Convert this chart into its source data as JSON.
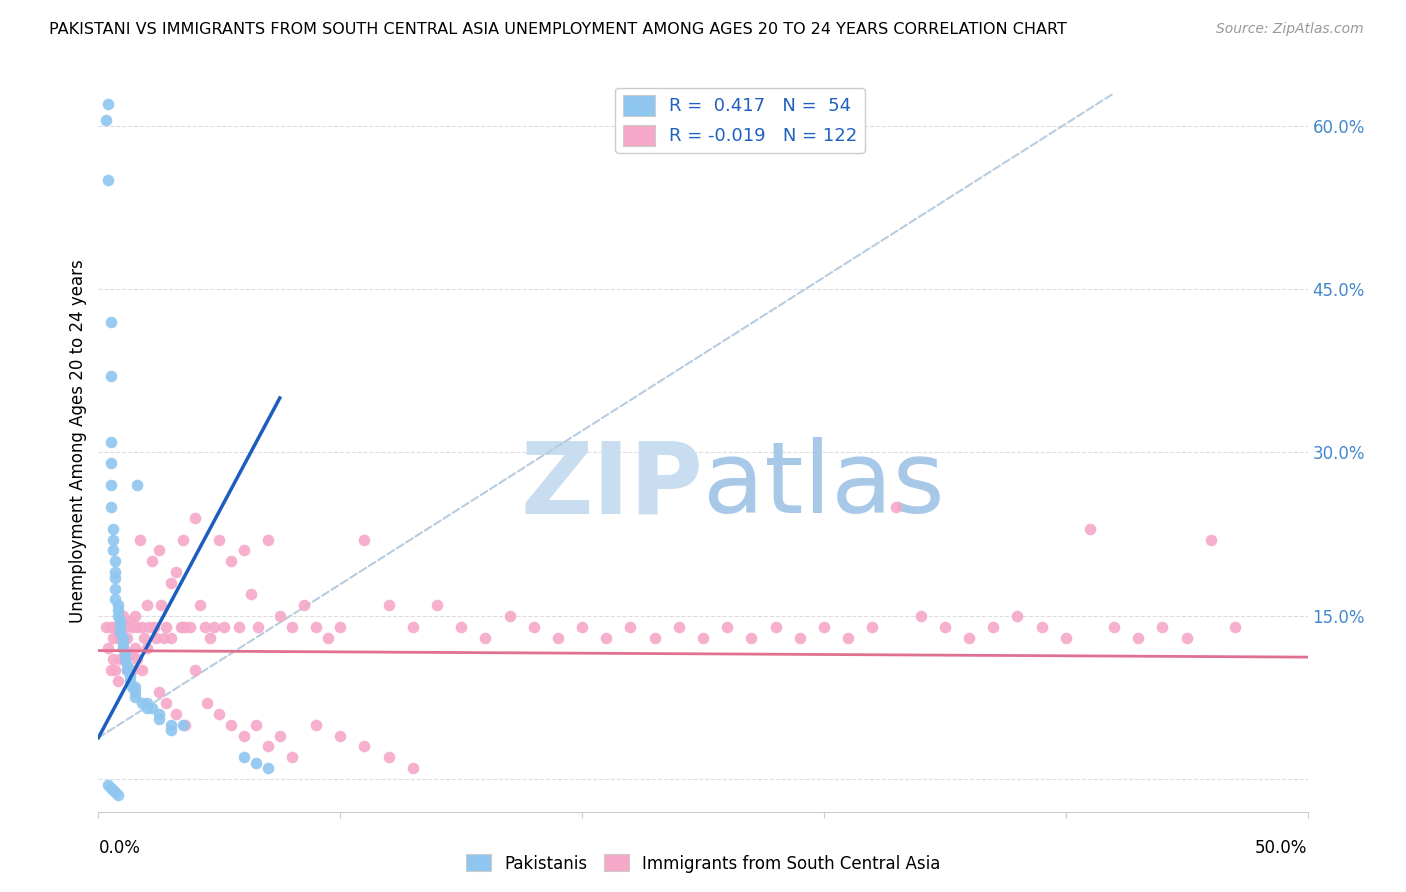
{
  "title": "PAKISTANI VS IMMIGRANTS FROM SOUTH CENTRAL ASIA UNEMPLOYMENT AMONG AGES 20 TO 24 YEARS CORRELATION CHART",
  "source": "Source: ZipAtlas.com",
  "ylabel": "Unemployment Among Ages 20 to 24 years",
  "xlim": [
    0.0,
    0.5
  ],
  "ylim": [
    -0.03,
    0.65
  ],
  "yticks": [
    0.0,
    0.15,
    0.3,
    0.45,
    0.6
  ],
  "ytick_labels": [
    "",
    "15.0%",
    "30.0%",
    "45.0%",
    "60.0%"
  ],
  "xticks": [
    0.0,
    0.1,
    0.2,
    0.3,
    0.4,
    0.5
  ],
  "R_pakistani": 0.417,
  "N_pakistani": 54,
  "R_immigrants": -0.019,
  "N_immigrants": 122,
  "color_pakistani": "#8EC6F0",
  "color_immigrants": "#F5A8C8",
  "color_line_pakistani": "#1B5EBF",
  "color_line_immigrants": "#E07090",
  "color_dashed_line": "#B8CCE0",
  "watermark_zip_color": "#C8DDF0",
  "watermark_atlas_color": "#A8C8E8",
  "pakistani_x": [
    0.003,
    0.004,
    0.004,
    0.005,
    0.005,
    0.005,
    0.005,
    0.005,
    0.005,
    0.006,
    0.006,
    0.006,
    0.007,
    0.007,
    0.007,
    0.007,
    0.007,
    0.008,
    0.008,
    0.008,
    0.009,
    0.009,
    0.009,
    0.01,
    0.01,
    0.01,
    0.011,
    0.011,
    0.012,
    0.012,
    0.013,
    0.013,
    0.014,
    0.015,
    0.015,
    0.015,
    0.016,
    0.018,
    0.02,
    0.02,
    0.022,
    0.025,
    0.025,
    0.03,
    0.03,
    0.035,
    0.06,
    0.065,
    0.07,
    0.004,
    0.005,
    0.006,
    0.007,
    0.008
  ],
  "pakistani_y": [
    0.605,
    0.62,
    0.55,
    0.42,
    0.37,
    0.31,
    0.29,
    0.27,
    0.25,
    0.23,
    0.22,
    0.21,
    0.2,
    0.19,
    0.185,
    0.175,
    0.165,
    0.16,
    0.155,
    0.15,
    0.145,
    0.14,
    0.135,
    0.13,
    0.125,
    0.12,
    0.115,
    0.11,
    0.105,
    0.1,
    0.095,
    0.09,
    0.085,
    0.085,
    0.08,
    0.075,
    0.27,
    0.07,
    0.07,
    0.065,
    0.065,
    0.06,
    0.055,
    0.05,
    0.045,
    0.05,
    0.02,
    0.015,
    0.01,
    -0.005,
    -0.008,
    -0.01,
    -0.012,
    -0.015
  ],
  "immigrants_x": [
    0.003,
    0.004,
    0.005,
    0.005,
    0.006,
    0.006,
    0.007,
    0.007,
    0.008,
    0.008,
    0.009,
    0.009,
    0.01,
    0.01,
    0.011,
    0.011,
    0.012,
    0.012,
    0.013,
    0.013,
    0.014,
    0.014,
    0.015,
    0.015,
    0.016,
    0.016,
    0.017,
    0.018,
    0.018,
    0.019,
    0.02,
    0.02,
    0.021,
    0.022,
    0.023,
    0.024,
    0.025,
    0.026,
    0.027,
    0.028,
    0.03,
    0.03,
    0.032,
    0.034,
    0.035,
    0.036,
    0.038,
    0.04,
    0.042,
    0.044,
    0.046,
    0.048,
    0.05,
    0.052,
    0.055,
    0.058,
    0.06,
    0.063,
    0.066,
    0.07,
    0.075,
    0.08,
    0.085,
    0.09,
    0.095,
    0.1,
    0.11,
    0.12,
    0.13,
    0.14,
    0.15,
    0.16,
    0.17,
    0.18,
    0.19,
    0.2,
    0.21,
    0.22,
    0.23,
    0.24,
    0.25,
    0.26,
    0.27,
    0.28,
    0.29,
    0.3,
    0.31,
    0.32,
    0.33,
    0.34,
    0.35,
    0.36,
    0.37,
    0.38,
    0.39,
    0.4,
    0.41,
    0.42,
    0.43,
    0.44,
    0.45,
    0.46,
    0.47,
    0.035,
    0.04,
    0.045,
    0.05,
    0.055,
    0.06,
    0.065,
    0.07,
    0.075,
    0.08,
    0.09,
    0.1,
    0.11,
    0.12,
    0.13,
    0.025,
    0.028,
    0.032,
    0.036
  ],
  "immigrants_y": [
    0.14,
    0.12,
    0.14,
    0.1,
    0.13,
    0.11,
    0.14,
    0.1,
    0.13,
    0.09,
    0.14,
    0.11,
    0.15,
    0.12,
    0.14,
    0.11,
    0.13,
    0.1,
    0.145,
    0.115,
    0.14,
    0.1,
    0.15,
    0.12,
    0.14,
    0.11,
    0.22,
    0.14,
    0.1,
    0.13,
    0.16,
    0.12,
    0.14,
    0.2,
    0.14,
    0.13,
    0.21,
    0.16,
    0.13,
    0.14,
    0.18,
    0.13,
    0.19,
    0.14,
    0.22,
    0.14,
    0.14,
    0.24,
    0.16,
    0.14,
    0.13,
    0.14,
    0.22,
    0.14,
    0.2,
    0.14,
    0.21,
    0.17,
    0.14,
    0.22,
    0.15,
    0.14,
    0.16,
    0.14,
    0.13,
    0.14,
    0.22,
    0.16,
    0.14,
    0.16,
    0.14,
    0.13,
    0.15,
    0.14,
    0.13,
    0.14,
    0.13,
    0.14,
    0.13,
    0.14,
    0.13,
    0.14,
    0.13,
    0.14,
    0.13,
    0.14,
    0.13,
    0.14,
    0.25,
    0.15,
    0.14,
    0.13,
    0.14,
    0.15,
    0.14,
    0.13,
    0.23,
    0.14,
    0.13,
    0.14,
    0.13,
    0.22,
    0.14,
    0.14,
    0.1,
    0.07,
    0.06,
    0.05,
    0.04,
    0.05,
    0.03,
    0.04,
    0.02,
    0.05,
    0.04,
    0.03,
    0.02,
    0.01,
    0.08,
    0.07,
    0.06,
    0.05
  ],
  "pak_line_x1": 0.0,
  "pak_line_y1": 0.038,
  "pak_line_x2": 0.075,
  "pak_line_y2": 0.35,
  "dashed_line_x1": 0.0,
  "dashed_line_y1": 0.038,
  "dashed_line_x2": 0.42,
  "dashed_line_y2": 0.63,
  "imm_line_x1": 0.0,
  "imm_line_y1": 0.118,
  "imm_line_x2": 0.5,
  "imm_line_y2": 0.112
}
